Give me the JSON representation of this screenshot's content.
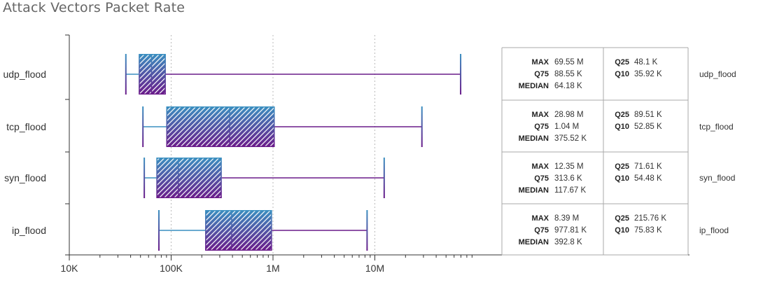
{
  "chart_data": {
    "type": "box",
    "title": "Attack Vectors Packet Rate",
    "xscale": "log",
    "xlim": [
      10000,
      200000000
    ],
    "x_ticks": [
      {
        "value": 10000,
        "label": "10K"
      },
      {
        "value": 100000,
        "label": "100K"
      },
      {
        "value": 1000000,
        "label": "1M"
      },
      {
        "value": 10000000,
        "label": "10M"
      }
    ],
    "grid": "vertical dotted at major ticks",
    "colors": {
      "top": "#3a8fc0",
      "bottom": "#6a1b8a",
      "grid": "#bbbbbb",
      "axis": "#333333"
    },
    "categories": [
      "udp_flood",
      "tcp_flood",
      "syn_flood",
      "ip_flood"
    ],
    "boxes": [
      {
        "name": "udp_flood",
        "q10": 35920,
        "q25": 48100,
        "median": 64180,
        "q75": 88550,
        "max": 69550000,
        "stats": {
          "max": "69.55 M",
          "q75": "88.55 K",
          "median": "64.18 K",
          "q25": "48.1 K",
          "q10": "35.92 K"
        }
      },
      {
        "name": "tcp_flood",
        "q10": 52850,
        "q25": 89510,
        "median": 375520,
        "q75": 1040000,
        "max": 28980000,
        "stats": {
          "max": "28.98 M",
          "q75": "1.04 M",
          "median": "375.52 K",
          "q25": "89.51 K",
          "q10": "52.85 K"
        }
      },
      {
        "name": "syn_flood",
        "q10": 54480,
        "q25": 71610,
        "median": 117670,
        "q75": 313600,
        "max": 12350000,
        "stats": {
          "max": "12.35 M",
          "q75": "313.6 K",
          "median": "117.67 K",
          "q25": "71.61 K",
          "q10": "54.48 K"
        }
      },
      {
        "name": "ip_flood",
        "q10": 75830,
        "q25": 215760,
        "median": 392800,
        "q75": 977810,
        "max": 8390000,
        "stats": {
          "max": "8.39 M",
          "q75": "977.81 K",
          "median": "392.8 K",
          "q25": "215.76 K",
          "q10": "75.83 K"
        }
      }
    ],
    "stat_keys": {
      "max": "MAX",
      "q75": "Q75",
      "median": "MEDIAN",
      "q25": "Q25",
      "q10": "Q10"
    }
  }
}
